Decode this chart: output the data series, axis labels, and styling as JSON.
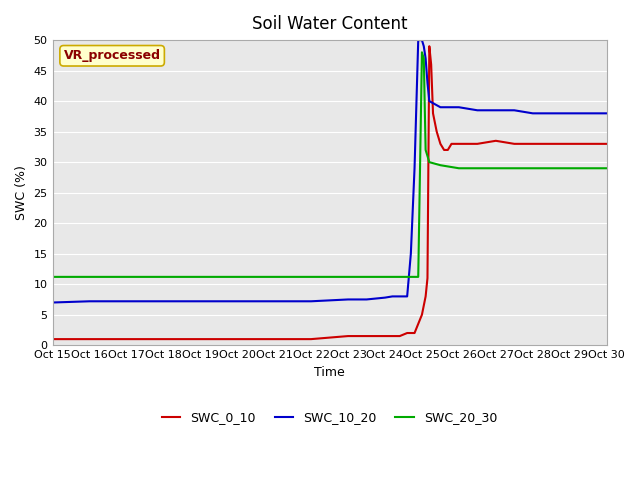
{
  "title": "Soil Water Content",
  "xlabel": "Time",
  "ylabel": "SWC (%)",
  "annotation": "VR_processed",
  "background_color": "#e8e8e8",
  "ylim": [
    0,
    50
  ],
  "xtick_labels": [
    "Oct 15",
    "Oct 16",
    "Oct 17",
    "Oct 18",
    "Oct 19",
    "Oct 20",
    "Oct 21",
    "Oct 22",
    "Oct 23",
    "Oct 24",
    "Oct 25",
    "Oct 26",
    "Oct 27",
    "Oct 28",
    "Oct 29",
    "Oct 30"
  ],
  "series": {
    "SWC_0_10": {
      "color": "#cc0000",
      "label": "SWC_0_10",
      "x": [
        0,
        1,
        2,
        3,
        4,
        5,
        6,
        7,
        8,
        8.5,
        9,
        9.2,
        9.4,
        9.6,
        9.8,
        10,
        10.1,
        10.15,
        10.2,
        10.25,
        10.3,
        10.4,
        10.5,
        10.6,
        10.7,
        10.8,
        11,
        11.5,
        12,
        12.5,
        13,
        13.5,
        14,
        14.5,
        15
      ],
      "y": [
        1,
        1,
        1,
        1,
        1,
        1,
        1,
        1,
        1.5,
        1.5,
        1.5,
        1.5,
        1.5,
        2,
        2,
        5,
        8,
        11,
        49,
        46,
        38,
        35,
        33,
        32,
        32,
        33,
        33,
        33,
        33.5,
        33,
        33,
        33,
        33,
        33,
        33
      ]
    },
    "SWC_10_20": {
      "color": "#0000cc",
      "label": "SWC_10_20",
      "x": [
        0,
        1,
        2,
        3,
        4,
        5,
        6,
        7,
        8,
        8.5,
        9,
        9.2,
        9.4,
        9.6,
        9.7,
        9.8,
        9.9,
        10,
        10.05,
        10.1,
        10.15,
        10.2,
        10.5,
        11,
        11.5,
        12,
        12.5,
        13,
        13.5,
        14,
        14.5,
        15
      ],
      "y": [
        7,
        7.2,
        7.2,
        7.2,
        7.2,
        7.2,
        7.2,
        7.2,
        7.5,
        7.5,
        7.8,
        8,
        8,
        8,
        15,
        29,
        50,
        50,
        49,
        47,
        43,
        40,
        39,
        39,
        38.5,
        38.5,
        38.5,
        38,
        38,
        38,
        38,
        38
      ]
    },
    "SWC_20_30": {
      "color": "#00aa00",
      "label": "SWC_20_30",
      "x": [
        0,
        1,
        2,
        3,
        4,
        5,
        6,
        7,
        8,
        8.5,
        9,
        9.2,
        9.4,
        9.6,
        9.7,
        9.8,
        9.9,
        10,
        10.05,
        10.1,
        10.2,
        10.5,
        11,
        11.5,
        12,
        12.5,
        13,
        13.5,
        14,
        14.5,
        15
      ],
      "y": [
        11.2,
        11.2,
        11.2,
        11.2,
        11.2,
        11.2,
        11.2,
        11.2,
        11.2,
        11.2,
        11.2,
        11.2,
        11.2,
        11.2,
        11.2,
        11.2,
        11.2,
        48,
        47,
        32,
        30,
        29.5,
        29,
        29,
        29,
        29,
        29,
        29,
        29,
        29,
        29
      ]
    }
  },
  "legend_entries": [
    "SWC_0_10",
    "SWC_10_20",
    "SWC_20_30"
  ],
  "legend_colors": [
    "#cc0000",
    "#0000cc",
    "#00aa00"
  ]
}
